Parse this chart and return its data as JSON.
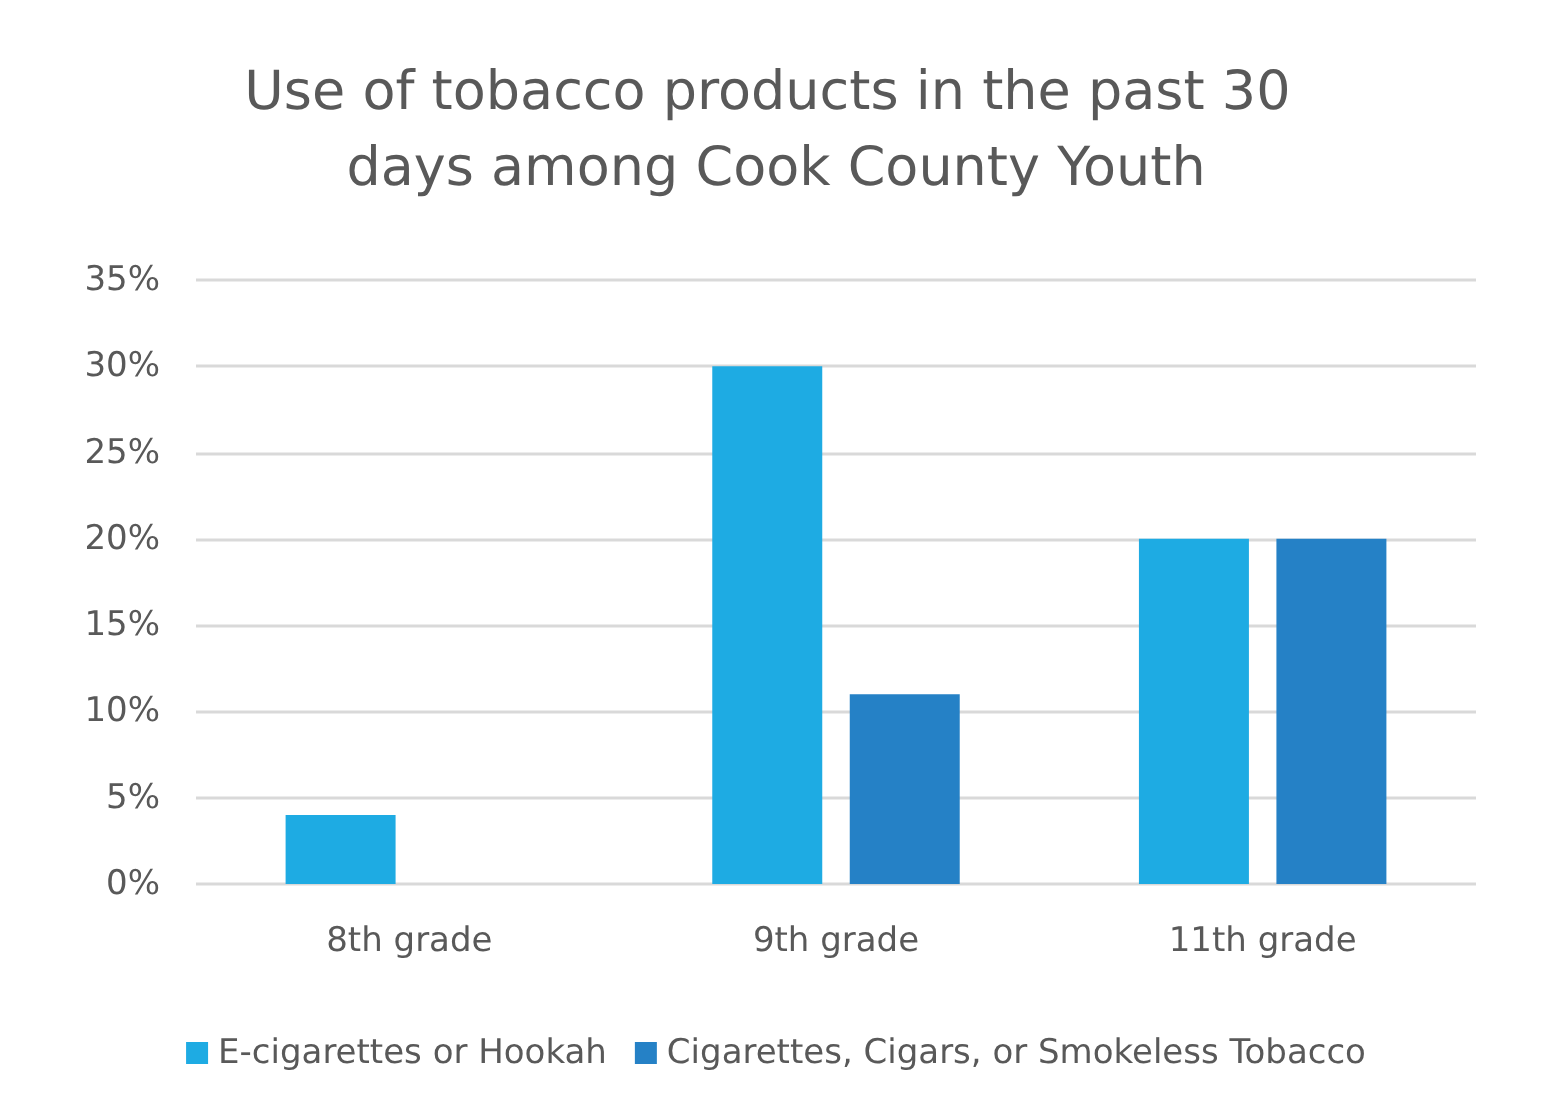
{
  "chart_data": {
    "type": "bar",
    "title": "Use of tobacco products in the past 30 days among Cook County Youth",
    "categories": [
      "8th grade",
      "9th grade",
      "11th grade"
    ],
    "series": [
      {
        "name": "E-cigarettes or Hookah",
        "color": "#1eabe3",
        "values": [
          4,
          30,
          20
        ]
      },
      {
        "name": "Cigarettes, Cigars, or Smokeless Tobacco",
        "color": "#2581c6",
        "values": [
          null,
          11,
          20
        ]
      }
    ],
    "ylim": [
      0,
      35
    ],
    "yticks": [
      {
        "value": 0,
        "label": "0%"
      },
      {
        "value": 5,
        "label": "5%"
      },
      {
        "value": 10,
        "label": "10%"
      },
      {
        "value": 15,
        "label": "15%"
      },
      {
        "value": 20,
        "label": "20%"
      },
      {
        "value": 25,
        "label": "25%"
      },
      {
        "value": 30,
        "label": "30%"
      },
      {
        "value": 35,
        "label": "35%"
      }
    ],
    "grid": "y",
    "legend": "bottom"
  }
}
